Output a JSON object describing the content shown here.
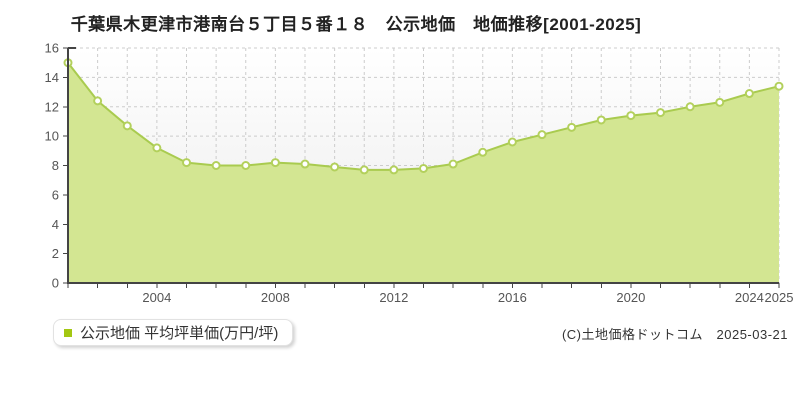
{
  "title": "千葉県木更津市港南台５丁目５番１８　公示地価　地価推移[2001-2025]",
  "legend": {
    "label": "公示地価 平均坪単価(万円/坪)"
  },
  "footer": {
    "copyright": "(C)土地価格ドットコム　2025-03-21"
  },
  "chart_data": {
    "type": "area",
    "title": "千葉県木更津市港南台５丁目５番１８ 公示地価 地価推移[2001-2025]",
    "xlabel": "",
    "ylabel": "万円/坪",
    "x": [
      2001,
      2002,
      2003,
      2004,
      2005,
      2006,
      2007,
      2008,
      2009,
      2010,
      2011,
      2012,
      2013,
      2014,
      2015,
      2016,
      2017,
      2018,
      2019,
      2020,
      2021,
      2022,
      2023,
      2024,
      2025
    ],
    "series": [
      {
        "name": "公示地価 平均坪単価(万円/坪)",
        "values": [
          15.0,
          12.4,
          10.7,
          9.2,
          8.2,
          8.0,
          8.0,
          8.2,
          8.1,
          7.9,
          7.7,
          7.7,
          7.8,
          8.1,
          8.9,
          9.6,
          10.1,
          10.6,
          11.1,
          11.4,
          11.6,
          12.0,
          12.3,
          12.9,
          13.4
        ]
      }
    ],
    "xlim": [
      2001,
      2025
    ],
    "ylim": [
      0,
      16
    ],
    "yticks": [
      0,
      2,
      4,
      6,
      8,
      10,
      12,
      14,
      16
    ],
    "xtick_labeled": [
      2004,
      2008,
      2012,
      2016,
      2020,
      2024,
      2025
    ],
    "grid": true,
    "legend_position": "bottom-left",
    "colors": {
      "area_fill": "#d3e692",
      "line": "#a9cb4f",
      "marker_fill": "#ffffff",
      "marker_stroke": "#b3d05c",
      "grid": "#cccccc",
      "axis": "#444444",
      "tick_label": "#555555",
      "legend_marker": "#a3c712",
      "plot_bg_top": "#ffffff",
      "plot_bg_bottom": "#ebebeb"
    }
  }
}
